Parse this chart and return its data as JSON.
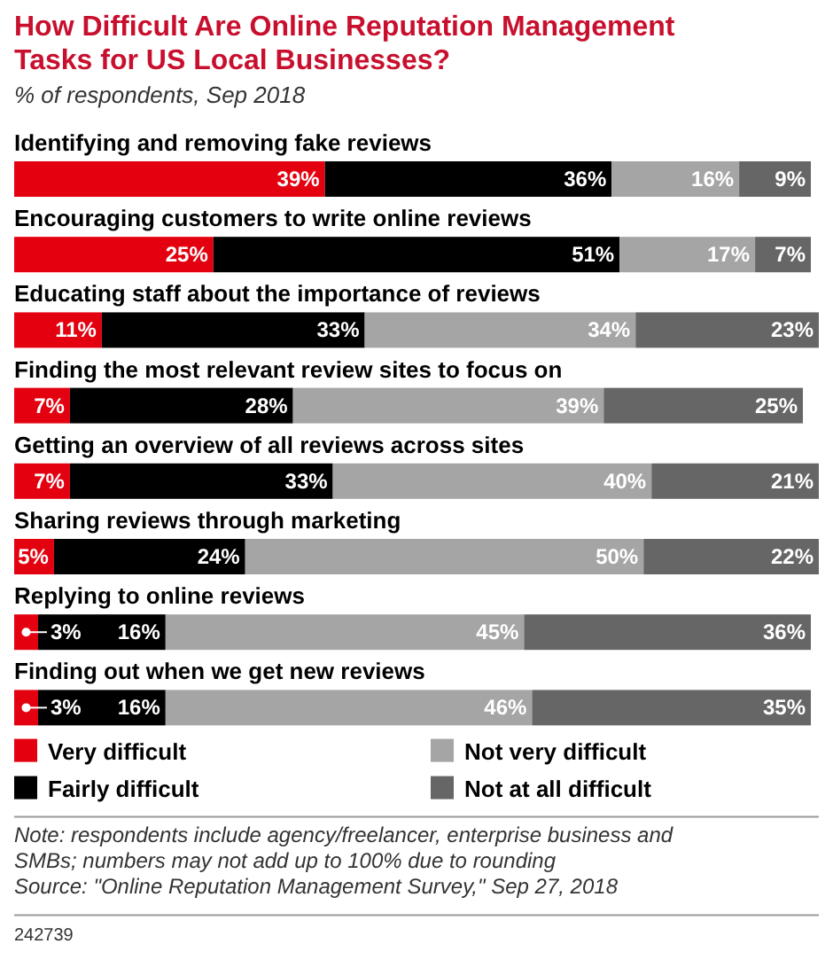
{
  "chart_data": {
    "type": "bar",
    "orientation": "horizontal",
    "stacked": true,
    "legend": "bottom",
    "title": "How Difficult Are Online Reputation Management Tasks for US Local Businesses?",
    "subtitle": "% of respondents, Sep 2018",
    "categories": [
      "Identifying and removing fake reviews",
      "Encouraging customers to write online reviews",
      "Educating staff about the importance of reviews",
      "Finding the most relevant review sites to focus on",
      "Getting an overview of all reviews across sites",
      "Sharing reviews through marketing",
      "Replying to online reviews",
      "Finding out when we get new reviews"
    ],
    "series": [
      {
        "name": "Very difficult",
        "color": "#e3000f",
        "values": [
          39,
          25,
          11,
          7,
          7,
          5,
          3,
          3
        ],
        "value_labels": [
          "39%",
          "25%",
          "11%",
          "7%",
          "7%",
          "5%",
          "3%",
          "3%"
        ]
      },
      {
        "name": "Fairly difficult",
        "color": "#000000",
        "values": [
          36,
          51,
          33,
          28,
          33,
          24,
          16,
          16
        ],
        "value_labels": [
          "36%",
          "51%",
          "33%",
          "28%",
          "33%",
          "24%",
          "16%",
          "16%"
        ]
      },
      {
        "name": "Not very difficult",
        "color": "#a5a5a5",
        "values": [
          16,
          17,
          34,
          39,
          40,
          50,
          45,
          46
        ],
        "value_labels": [
          "16%",
          "17%",
          "34%",
          "39%",
          "40%",
          "50%",
          "45%",
          "46%"
        ]
      },
      {
        "name": "Not at all difficult",
        "color": "#666666",
        "values": [
          9,
          7,
          23,
          25,
          21,
          22,
          36,
          35
        ],
        "value_labels": [
          "9%",
          "7%",
          "23%",
          "25%",
          "21%",
          "22%",
          "36%",
          "35%"
        ]
      }
    ],
    "annotations": [
      "Note: respondents include agency/freelancer, enterprise business and SMBs; numbers may not add up to 100% due to rounding",
      "Source: \"Online Reputation Management Survey,\" Sep 27, 2018",
      "242739"
    ]
  }
}
